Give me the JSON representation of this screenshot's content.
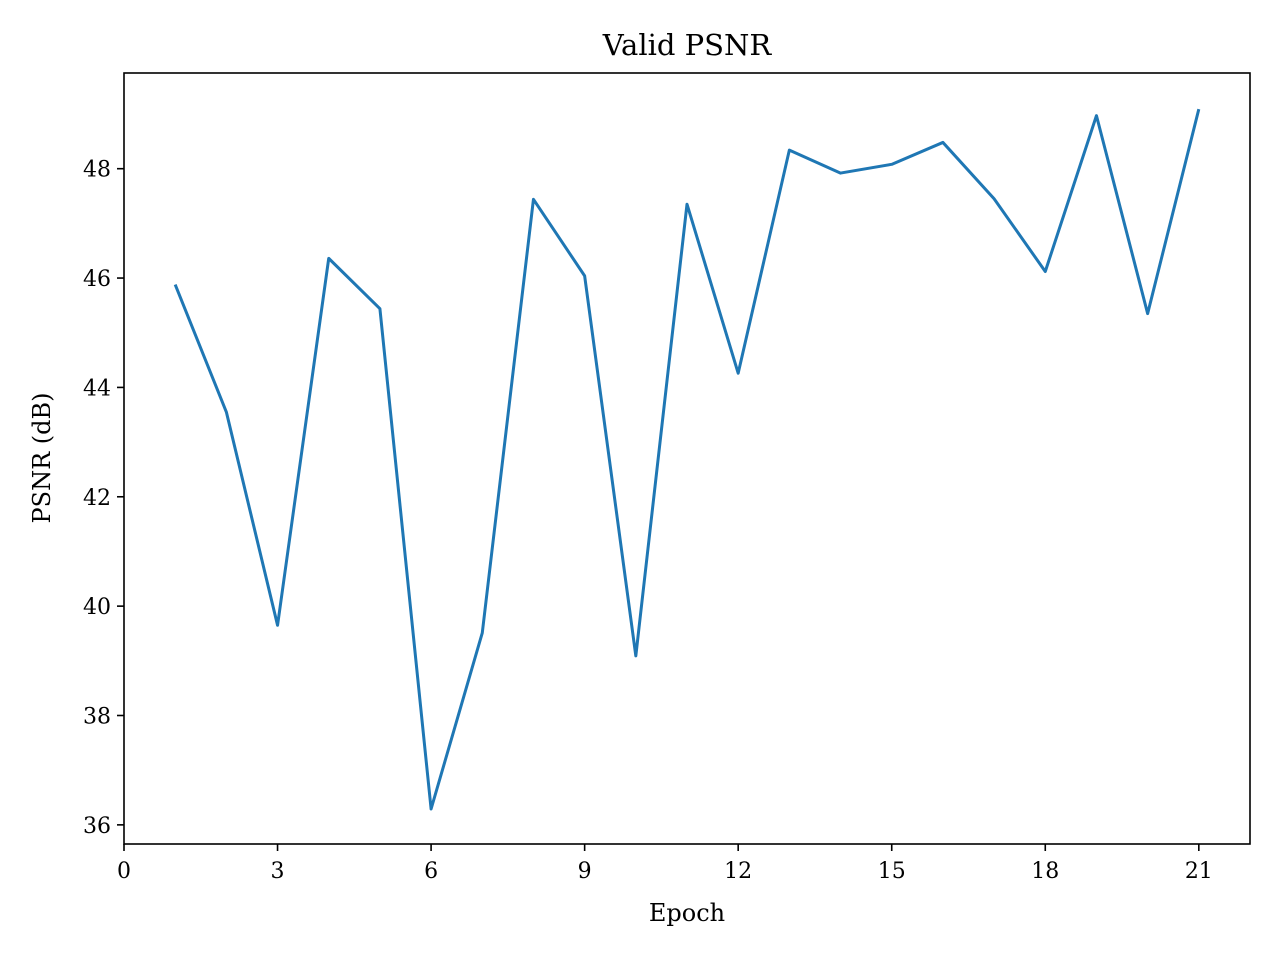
{
  "chart_data": {
    "type": "line",
    "title": "Valid PSNR",
    "xlabel": "Epoch",
    "ylabel": "PSNR (dB)",
    "xlim": [
      0,
      22
    ],
    "ylim": [
      35.65,
      49.75
    ],
    "xticks": [
      0,
      3,
      6,
      9,
      12,
      15,
      18,
      21
    ],
    "yticks": [
      36,
      38,
      40,
      42,
      44,
      46,
      48
    ],
    "grid": false,
    "legend": "none",
    "series": [
      {
        "color": "#1f77b4",
        "x": [
          1,
          2,
          3,
          4,
          5,
          6,
          7,
          8,
          9,
          10,
          11,
          12,
          13,
          14,
          15,
          16,
          17,
          18,
          19,
          20,
          21
        ],
        "y": [
          45.88,
          43.55,
          39.65,
          46.36,
          45.44,
          36.29,
          39.51,
          47.44,
          46.04,
          39.09,
          47.35,
          44.26,
          48.34,
          47.92,
          48.08,
          48.48,
          47.45,
          46.12,
          48.97,
          45.35,
          49.09
        ]
      }
    ]
  }
}
